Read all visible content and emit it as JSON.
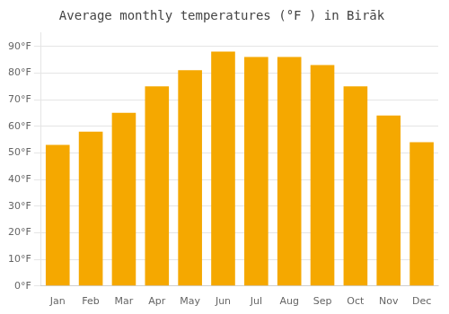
{
  "chart_data": {
    "type": "bar",
    "title": "Average monthly temperatures (°F ) in Birāk",
    "categories": [
      "Jan",
      "Feb",
      "Mar",
      "Apr",
      "May",
      "Jun",
      "Jul",
      "Aug",
      "Sep",
      "Oct",
      "Nov",
      "Dec"
    ],
    "values": [
      53,
      58,
      65,
      75,
      81,
      88,
      86,
      86,
      83,
      75,
      64,
      54
    ],
    "color": "#F5A800",
    "ylim": [
      0,
      95
    ],
    "yticks": [
      {
        "value": 0,
        "label": "0°F"
      },
      {
        "value": 10,
        "label": "10°F"
      },
      {
        "value": 20,
        "label": "20°F"
      },
      {
        "value": 30,
        "label": "30°F"
      },
      {
        "value": 40,
        "label": "40°F"
      },
      {
        "value": 50,
        "label": "50°F"
      },
      {
        "value": 60,
        "label": "60°F"
      },
      {
        "value": 70,
        "label": "70°F"
      },
      {
        "value": 80,
        "label": "80°F"
      },
      {
        "value": 90,
        "label": "90°F"
      }
    ],
    "grid": true
  }
}
